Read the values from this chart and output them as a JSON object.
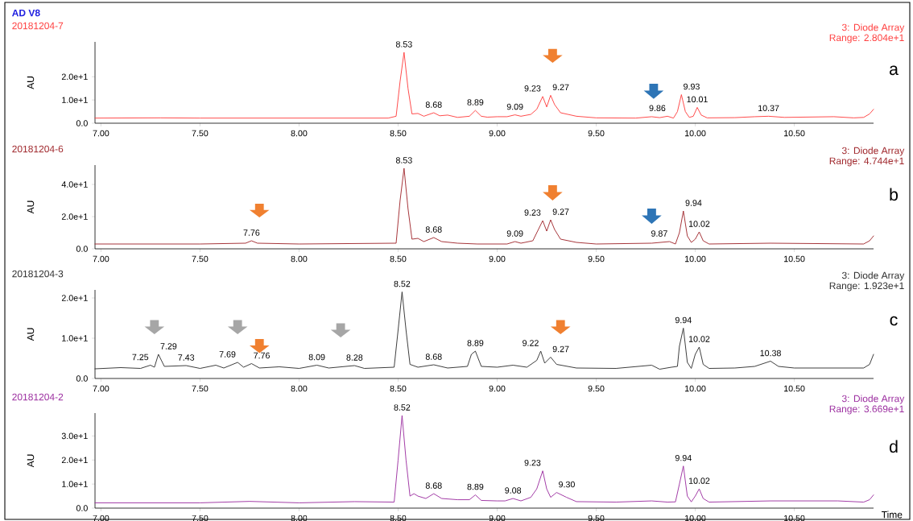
{
  "chart_data": [
    {
      "type": "line",
      "title": "20181204-7",
      "ylabel": "AU",
      "annotations": [
        "3: Diode Array",
        "Range: 2.804e+1",
        "a",
        "AD V8",
        {
          "text": "8.53",
          "x": 8.53,
          "y": 30.5
        },
        {
          "text": "8.68",
          "x": 8.68,
          "y": 4.5
        },
        {
          "text": "8.89",
          "x": 8.89,
          "y": 5.5
        },
        {
          "text": "9.09",
          "x": 9.09,
          "y": 3.6
        },
        {
          "text": "9.23",
          "x": 9.23,
          "y": 11.5
        },
        {
          "text": "9.27",
          "x": 9.27,
          "y": 12
        },
        {
          "text": "9.86",
          "x": 9.86,
          "y": 3
        },
        {
          "text": "9.93",
          "x": 9.93,
          "y": 12.3
        },
        {
          "text": "10.01",
          "x": 10.01,
          "y": 6.8
        },
        {
          "text": "10.37",
          "x": 10.37,
          "y": 3
        }
      ],
      "x": [
        6.97,
        7.3,
        7.5,
        8.0,
        8.45,
        8.49,
        8.51,
        8.53,
        8.55,
        8.57,
        8.6,
        8.63,
        8.68,
        8.71,
        8.75,
        8.8,
        8.86,
        8.89,
        8.92,
        8.95,
        9.0,
        9.05,
        9.09,
        9.12,
        9.17,
        9.2,
        9.23,
        9.25,
        9.27,
        9.29,
        9.32,
        9.4,
        9.5,
        9.7,
        9.78,
        9.82,
        9.86,
        9.89,
        9.91,
        9.93,
        9.95,
        9.97,
        9.99,
        10.01,
        10.03,
        10.06,
        10.2,
        10.3,
        10.37,
        10.45,
        10.7,
        10.8,
        10.85,
        10.88,
        10.9
      ],
      "series": [
        {
          "color": "#ff4040",
          "values": [
            2.2,
            2.3,
            2.2,
            2.2,
            2.2,
            3,
            18,
            30.5,
            15,
            4,
            4.2,
            3,
            4.5,
            3.2,
            3.5,
            2.5,
            3,
            5.5,
            3,
            2.6,
            2.8,
            2.8,
            3.6,
            3,
            3.8,
            6,
            11.5,
            7,
            12,
            8,
            4.5,
            3,
            2.3,
            2.2,
            2.8,
            2.4,
            3,
            2.2,
            5,
            12.3,
            5,
            2.5,
            3,
            6.8,
            3.5,
            2.3,
            2.4,
            2.8,
            3,
            2.5,
            2.8,
            2.3,
            2.5,
            4,
            6
          ]
        }
      ],
      "xlim": [
        6.97,
        10.9
      ],
      "ylim": [
        0,
        35
      ],
      "xticks": [
        {
          "value": 7,
          "label": "7.00"
        },
        {
          "value": 7.5,
          "label": "7.50"
        },
        {
          "value": 8,
          "label": "8.00"
        },
        {
          "value": 8.5,
          "label": "8.50"
        },
        {
          "value": 9,
          "label": "9.00"
        },
        {
          "value": 9.5,
          "label": "9.50"
        },
        {
          "value": 10,
          "label": "10.00"
        },
        {
          "value": 10.5,
          "label": "10.50"
        }
      ],
      "yticks": [
        {
          "value": 0,
          "label": "0.0"
        },
        {
          "value": 10,
          "label": "1.0e+1"
        },
        {
          "value": 20,
          "label": "2.0e+1"
        }
      ]
    },
    {
      "type": "line",
      "title": "20181204-6",
      "ylabel": "AU",
      "annotations": [
        "3: Diode Array",
        "Range: 4.744e+1",
        "b",
        {
          "text": "7.76",
          "x": 7.76,
          "y": 5
        },
        {
          "text": "8.53",
          "x": 8.53,
          "y": 50
        },
        {
          "text": "8.68",
          "x": 8.68,
          "y": 7
        },
        {
          "text": "9.09",
          "x": 9.09,
          "y": 4.5
        },
        {
          "text": "9.23",
          "x": 9.23,
          "y": 17.5
        },
        {
          "text": "9.27",
          "x": 9.27,
          "y": 18
        },
        {
          "text": "9.87",
          "x": 9.87,
          "y": 4.5
        },
        {
          "text": "9.94",
          "x": 9.94,
          "y": 23.5
        },
        {
          "text": "10.02",
          "x": 10.02,
          "y": 10.5
        }
      ],
      "x": [
        6.97,
        7.5,
        7.73,
        7.76,
        7.79,
        8.0,
        8.49,
        8.51,
        8.53,
        8.55,
        8.57,
        8.6,
        8.63,
        8.68,
        8.72,
        8.8,
        8.9,
        9.05,
        9.09,
        9.12,
        9.18,
        9.2,
        9.23,
        9.25,
        9.27,
        9.29,
        9.32,
        9.4,
        9.5,
        9.78,
        9.87,
        9.9,
        9.92,
        9.94,
        9.96,
        9.98,
        10.0,
        10.02,
        10.04,
        10.07,
        10.38,
        10.85,
        10.88,
        10.9
      ],
      "series": [
        {
          "color": "#a0282d",
          "values": [
            3,
            3,
            3.5,
            5,
            3.5,
            3,
            3.5,
            30,
            50,
            25,
            6,
            6.5,
            4.5,
            7,
            4.5,
            3.5,
            3,
            3,
            4.5,
            3.5,
            5,
            10,
            17.5,
            11,
            18,
            12,
            6,
            4,
            3,
            3.5,
            4.5,
            3,
            10,
            23.5,
            8,
            4,
            6,
            10.5,
            5,
            3,
            3.5,
            3,
            5,
            8
          ]
        }
      ],
      "xlim": [
        6.97,
        10.9
      ],
      "ylim": [
        0,
        52
      ],
      "xticks": [
        {
          "value": 7,
          "label": "7.00"
        },
        {
          "value": 7.5,
          "label": "7.50"
        },
        {
          "value": 8,
          "label": "8.00"
        },
        {
          "value": 8.5,
          "label": "8.50"
        },
        {
          "value": 9,
          "label": "9.00"
        },
        {
          "value": 9.5,
          "label": "9.50"
        },
        {
          "value": 10,
          "label": "10.00"
        },
        {
          "value": 10.5,
          "label": "10.50"
        }
      ],
      "yticks": [
        {
          "value": 0,
          "label": "0.0"
        },
        {
          "value": 20,
          "label": "2.0e+1"
        },
        {
          "value": 40,
          "label": "4.0e+1"
        }
      ]
    },
    {
      "type": "line",
      "title": "20181204-3",
      "ylabel": "AU",
      "annotations": [
        "3: Diode Array",
        "Range: 1.923e+1",
        "c",
        {
          "text": "7.25",
          "x": 7.25,
          "y": 3.3
        },
        {
          "text": "7.29",
          "x": 7.29,
          "y": 6
        },
        {
          "text": "7.43",
          "x": 7.43,
          "y": 3.2
        },
        {
          "text": "7.69",
          "x": 7.69,
          "y": 4
        },
        {
          "text": "7.76",
          "x": 7.76,
          "y": 3.7
        },
        {
          "text": "8.09",
          "x": 8.09,
          "y": 3.3
        },
        {
          "text": "8.28",
          "x": 8.28,
          "y": 3.2
        },
        {
          "text": "8.52",
          "x": 8.52,
          "y": 21.5
        },
        {
          "text": "8.68",
          "x": 8.68,
          "y": 3.4
        },
        {
          "text": "8.89",
          "x": 8.89,
          "y": 6.8
        },
        {
          "text": "9.22",
          "x": 9.22,
          "y": 6.8
        },
        {
          "text": "9.27",
          "x": 9.27,
          "y": 5.3
        },
        {
          "text": "9.94",
          "x": 9.94,
          "y": 12.5
        },
        {
          "text": "10.02",
          "x": 10.02,
          "y": 7.8
        },
        {
          "text": "10.38",
          "x": 10.38,
          "y": 4.3
        }
      ],
      "x": [
        6.97,
        7.1,
        7.2,
        7.25,
        7.27,
        7.29,
        7.32,
        7.43,
        7.5,
        7.58,
        7.62,
        7.69,
        7.72,
        7.76,
        7.8,
        7.9,
        8.0,
        8.09,
        8.15,
        8.28,
        8.33,
        8.48,
        8.5,
        8.52,
        8.54,
        8.56,
        8.6,
        8.68,
        8.75,
        8.85,
        8.87,
        8.89,
        8.92,
        9.0,
        9.08,
        9.15,
        9.2,
        9.22,
        9.24,
        9.27,
        9.3,
        9.4,
        9.6,
        9.78,
        9.82,
        9.88,
        9.91,
        9.92,
        9.94,
        9.96,
        9.98,
        10.0,
        10.02,
        10.04,
        10.07,
        10.2,
        10.3,
        10.38,
        10.42,
        10.5,
        10.85,
        10.88,
        10.9
      ],
      "series": [
        {
          "color": "#303030",
          "values": [
            2.4,
            2.7,
            2.5,
            3.3,
            2.8,
            6,
            3,
            3.2,
            2.5,
            3.3,
            2.6,
            4,
            2.8,
            3.7,
            2.6,
            2.9,
            2.5,
            3.3,
            2.6,
            3.2,
            2.5,
            2.8,
            12,
            21.5,
            12,
            3.5,
            2.8,
            3.4,
            2.6,
            3,
            6,
            6.8,
            3,
            2.8,
            3.3,
            2.8,
            4.5,
            6.8,
            3.8,
            5.3,
            3.5,
            2.6,
            2.5,
            3.3,
            2.3,
            2.8,
            3,
            8,
            12.5,
            4,
            2.5,
            6,
            7.8,
            3.5,
            2.5,
            2.6,
            3,
            4.3,
            3,
            2.6,
            2.6,
            3.5,
            6
          ]
        }
      ],
      "xlim": [
        6.97,
        10.9
      ],
      "ylim": [
        0,
        22
      ],
      "xticks": [
        {
          "value": 7,
          "label": "7.00"
        },
        {
          "value": 7.5,
          "label": "7.50"
        },
        {
          "value": 8,
          "label": "8.00"
        },
        {
          "value": 8.5,
          "label": "8.50"
        },
        {
          "value": 9,
          "label": "9.00"
        },
        {
          "value": 9.5,
          "label": "9.50"
        },
        {
          "value": 10,
          "label": "10.00"
        },
        {
          "value": 10.5,
          "label": "10.50"
        }
      ],
      "yticks": [
        {
          "value": 0,
          "label": "0.0"
        },
        {
          "value": 10,
          "label": "1.0e+1"
        },
        {
          "value": 20,
          "label": "2.0e+1"
        }
      ]
    },
    {
      "type": "line",
      "title": "20181204-2",
      "ylabel": "AU",
      "xlabel": "Time",
      "annotations": [
        "3: Diode Array",
        "Range: 3.669e+1",
        "d",
        {
          "text": "8.52",
          "x": 8.52,
          "y": 38.5
        },
        {
          "text": "8.68",
          "x": 8.68,
          "y": 6
        },
        {
          "text": "8.89",
          "x": 8.89,
          "y": 5.5
        },
        {
          "text": "9.08",
          "x": 9.08,
          "y": 4
        },
        {
          "text": "9.23",
          "x": 9.23,
          "y": 15.5
        },
        {
          "text": "9.30",
          "x": 9.3,
          "y": 6.5
        },
        {
          "text": "9.94",
          "x": 9.94,
          "y": 17.5
        },
        {
          "text": "10.02",
          "x": 10.02,
          "y": 8
        }
      ],
      "x": [
        6.97,
        7.5,
        7.75,
        8.0,
        8.28,
        8.48,
        8.5,
        8.52,
        8.54,
        8.56,
        8.58,
        8.6,
        8.64,
        8.68,
        8.72,
        8.8,
        8.86,
        8.89,
        8.92,
        9.0,
        9.04,
        9.08,
        9.12,
        9.17,
        9.2,
        9.23,
        9.25,
        9.27,
        9.3,
        9.35,
        9.4,
        9.6,
        9.78,
        9.86,
        9.9,
        9.92,
        9.94,
        9.96,
        9.98,
        10.0,
        10.02,
        10.04,
        10.07,
        10.38,
        10.72,
        10.85,
        10.88,
        10.9
      ],
      "series": [
        {
          "color": "#9c2fa0",
          "values": [
            2.2,
            2.2,
            2.8,
            2.2,
            2.7,
            2.5,
            20,
            38.5,
            20,
            5,
            6,
            5,
            4,
            6,
            4,
            3.5,
            3.5,
            5.5,
            3.2,
            3,
            3,
            4,
            3,
            4.5,
            8,
            15.5,
            8,
            4.5,
            6.5,
            4.5,
            2.7,
            2.5,
            3,
            2.5,
            2.6,
            10,
            17.5,
            5,
            2.6,
            5,
            8,
            4,
            2.5,
            3,
            3,
            2.5,
            3.5,
            5.5
          ]
        }
      ],
      "xlim": [
        6.97,
        10.9
      ],
      "ylim": [
        0,
        39.5
      ],
      "xticks": [
        {
          "value": 7,
          "label": "7.00"
        },
        {
          "value": 7.5,
          "label": "7.50"
        },
        {
          "value": 8,
          "label": "8.00"
        },
        {
          "value": 8.5,
          "label": "8.50"
        },
        {
          "value": 9,
          "label": "9.00"
        },
        {
          "value": 9.5,
          "label": "9.50"
        },
        {
          "value": 10,
          "label": "10.00"
        },
        {
          "value": 10.5,
          "label": "10.50"
        }
      ],
      "yticks": [
        {
          "value": 0,
          "label": "0.0"
        },
        {
          "value": 10,
          "label": "1.0e+1"
        },
        {
          "value": 20,
          "label": "2.0e+1"
        },
        {
          "value": 30,
          "label": "3.0e+1"
        }
      ]
    }
  ]
}
